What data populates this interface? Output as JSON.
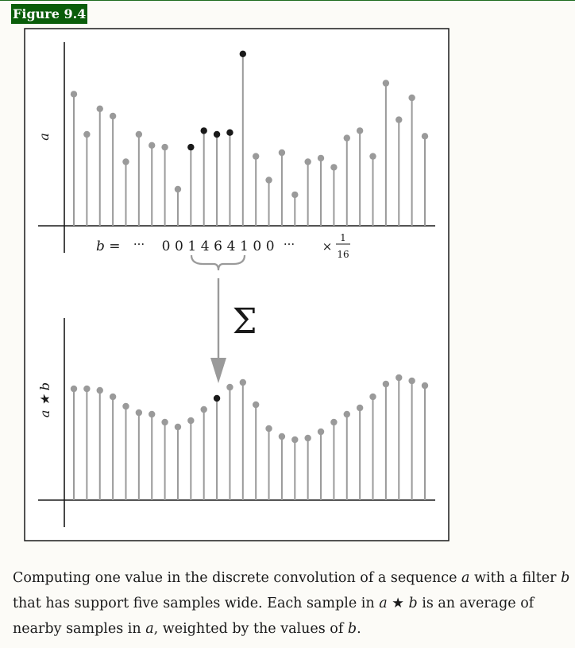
{
  "figure": {
    "label": "Figure 9.4",
    "top_axis_label": "a",
    "bottom_axis_label": "a ★ b",
    "filter_prefix": "b =",
    "ellipsis": "···",
    "filter_digits": [
      "0",
      "0",
      "1",
      "4",
      "6",
      "4",
      "1",
      "0",
      "0"
    ],
    "scale_times": "×",
    "scale_num": "1",
    "scale_den": "16",
    "sum_symbol": "Σ"
  },
  "chart_data": {
    "type": "stem",
    "top_sequence_a": [
      0.72,
      0.5,
      0.64,
      0.6,
      0.35,
      0.5,
      0.44,
      0.43,
      0.2,
      0.43,
      0.52,
      0.5,
      0.51,
      0.94,
      0.38,
      0.25,
      0.4,
      0.17,
      0.35,
      0.37,
      0.32,
      0.48,
      0.52,
      0.38,
      0.78,
      0.58,
      0.7,
      0.49
    ],
    "top_highlight_indices": [
      9,
      10,
      11,
      12,
      13
    ],
    "bottom_sequence_a_star_b": [
      0.7,
      0.7,
      0.69,
      0.65,
      0.59,
      0.55,
      0.54,
      0.49,
      0.46,
      0.5,
      0.57,
      0.64,
      0.71,
      0.74,
      0.6,
      0.45,
      0.4,
      0.38,
      0.39,
      0.43,
      0.49,
      0.54,
      0.58,
      0.65,
      0.73,
      0.77,
      0.75,
      0.72
    ],
    "bottom_highlight_indices": [
      11
    ],
    "filter_b": [
      1,
      4,
      6,
      4,
      1
    ],
    "filter_scale": 0.0625
  },
  "caption": {
    "l1_a": "Computing one value in the discrete convolution of a sequence ",
    "l1_b": "a",
    "l1_c": " with a filter ",
    "l1_d": "b",
    "l2_a": "that has support five samples wide. Each sample in ",
    "l2_b": "a",
    "l2_c": " ★ ",
    "l2_d": "b",
    "l2_e": " is an average of",
    "l3_a": "nearby samples in ",
    "l3_b": "a",
    "l3_c": ", weighted by the values of ",
    "l3_d": "b",
    "l3_e": "."
  },
  "colors": {
    "stem": "#9a9a9a",
    "highlight": "#1a1a1a",
    "label_bg": "#0a5d0a"
  }
}
